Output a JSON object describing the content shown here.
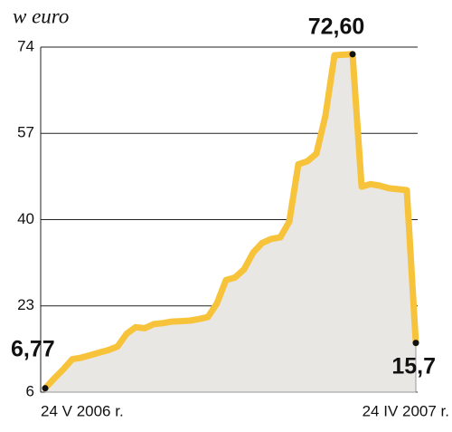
{
  "chart_data": {
    "type": "area-line",
    "title": "w euro",
    "categories": [
      "24 V 2006 r.",
      null,
      null,
      null,
      null,
      null,
      null,
      null,
      null,
      null,
      null,
      null,
      null,
      null,
      null,
      null,
      null,
      null,
      null,
      null,
      null,
      null,
      null,
      null,
      null,
      null,
      null,
      null,
      null,
      null,
      null,
      null,
      null,
      null,
      null,
      null,
      null,
      null,
      null,
      null,
      null,
      "24 IV 2007 r."
    ],
    "values": [
      6.77,
      8.7,
      10.5,
      12.5,
      12.8,
      13.3,
      13.8,
      14.3,
      15.0,
      17.5,
      18.8,
      18.6,
      19.4,
      19.6,
      19.9,
      20.0,
      20.1,
      20.4,
      20.8,
      23.5,
      28.1,
      28.6,
      30.2,
      33.5,
      35.4,
      36.2,
      36.5,
      39.6,
      50.9,
      51.5,
      53.0,
      60.5,
      72.4,
      72.5,
      72.6,
      46.5,
      47.0,
      46.7,
      46.2,
      46.0,
      45.8,
      15.7
    ],
    "value_labels": [
      "6,77",
      null,
      null,
      null,
      null,
      null,
      null,
      null,
      null,
      null,
      null,
      null,
      null,
      null,
      null,
      null,
      null,
      null,
      null,
      null,
      null,
      null,
      null,
      null,
      null,
      null,
      null,
      null,
      null,
      null,
      null,
      null,
      null,
      null,
      "72,60",
      null,
      null,
      null,
      null,
      null,
      null,
      "15,7"
    ],
    "color": "#f7c33b",
    "fill": "#e8e7e4",
    "ylim": [
      6,
      74
    ],
    "yticks": [
      6,
      23,
      40,
      57,
      74
    ],
    "grid": true
  }
}
